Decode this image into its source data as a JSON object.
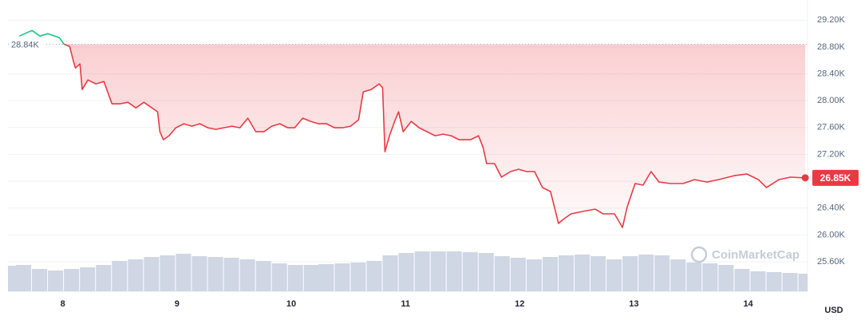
{
  "chart_data": {
    "type": "line",
    "x": [
      7.62,
      7.73,
      7.8,
      7.87,
      7.97,
      8.01,
      8.06,
      8.09,
      8.11,
      8.15,
      8.17,
      8.22,
      8.29,
      8.36,
      8.43,
      8.5,
      8.57,
      8.64,
      8.71,
      8.78,
      8.83,
      8.85,
      8.88,
      8.93,
      8.99,
      9.06,
      9.13,
      9.2,
      9.27,
      9.34,
      9.41,
      9.48,
      9.55,
      9.62,
      9.69,
      9.76,
      9.83,
      9.9,
      9.97,
      10.03,
      10.1,
      10.17,
      10.24,
      10.31,
      10.38,
      10.45,
      10.52,
      10.59,
      10.63,
      10.7,
      10.77,
      10.8,
      10.82,
      10.86,
      10.91,
      10.94,
      10.98,
      11.05,
      11.12,
      11.19,
      11.26,
      11.33,
      11.4,
      11.47,
      11.57,
      11.64,
      11.68,
      11.71,
      11.78,
      11.84,
      11.92,
      11.99,
      12.06,
      12.13,
      12.2,
      12.27,
      12.34,
      12.38,
      12.45,
      12.55,
      12.66,
      12.73,
      12.83,
      12.9,
      12.94,
      13.01,
      13.08,
      13.15,
      13.22,
      13.32,
      13.43,
      13.53,
      13.64,
      13.74,
      13.88,
      13.99,
      14.09,
      14.16,
      14.27,
      14.37,
      14.5
    ],
    "values": [
      28962,
      29046,
      28962,
      28998,
      28939,
      28844,
      28808,
      28606,
      28487,
      28547,
      28166,
      28309,
      28250,
      28285,
      27953,
      27953,
      27976,
      27893,
      27976,
      27893,
      27834,
      27537,
      27418,
      27477,
      27596,
      27656,
      27620,
      27656,
      27596,
      27572,
      27596,
      27620,
      27596,
      27739,
      27537,
      27537,
      27620,
      27656,
      27596,
      27596,
      27739,
      27691,
      27656,
      27656,
      27596,
      27596,
      27620,
      27715,
      28131,
      28166,
      28250,
      28190,
      27240,
      27477,
      27715,
      27834,
      27537,
      27691,
      27596,
      27537,
      27477,
      27501,
      27477,
      27418,
      27418,
      27477,
      27299,
      27062,
      27062,
      26860,
      26943,
      26978,
      26943,
      26943,
      26705,
      26646,
      26171,
      26230,
      26313,
      26349,
      26384,
      26313,
      26313,
      26111,
      26408,
      26765,
      26741,
      26943,
      26788,
      26765,
      26765,
      26824,
      26788,
      26824,
      26883,
      26907,
      26824,
      26705,
      26824,
      26860,
      26850
    ],
    "last_value_label": "26.85K",
    "color": "#ea3943",
    "up_color": "#16c784",
    "baseline": {
      "value": 28840,
      "label": "28.84K"
    },
    "xlim": [
      7.52,
      14.52
    ],
    "xticks": [
      8,
      9,
      10,
      11,
      12,
      13,
      14
    ],
    "ylim": [
      25160,
      29500
    ],
    "yticks": [
      {
        "value": 25600,
        "label": "25.60K"
      },
      {
        "value": 26000,
        "label": "26.00K"
      },
      {
        "value": 26400,
        "label": "26.40K"
      },
      {
        "value": 26800,
        "label": "26.80K"
      },
      {
        "value": 27200,
        "label": "27.20K"
      },
      {
        "value": 27600,
        "label": "27.60K"
      },
      {
        "value": 28000,
        "label": "28.00K"
      },
      {
        "value": 28400,
        "label": "28.40K"
      },
      {
        "value": 28800,
        "label": "28.80K"
      },
      {
        "value": 29200,
        "label": "29.20K"
      }
    ],
    "grid": true,
    "currency": "USD",
    "watermark": "CoinMarketCap",
    "volume": {
      "x": [
        7.52,
        7.66,
        7.8,
        7.94,
        8.08,
        8.22,
        8.36,
        8.5,
        8.64,
        8.78,
        8.92,
        9.06,
        9.2,
        9.34,
        9.48,
        9.62,
        9.76,
        9.9,
        10.04,
        10.18,
        10.31,
        10.45,
        10.59,
        10.73,
        10.87,
        11.01,
        11.15,
        11.29,
        11.43,
        11.57,
        11.71,
        11.85,
        11.99,
        12.13,
        12.27,
        12.41,
        12.55,
        12.69,
        12.83,
        12.97,
        13.11,
        13.25,
        13.39,
        13.53,
        13.67,
        13.81,
        13.95,
        14.09,
        14.23,
        14.37,
        14.51
      ],
      "values": [
        32,
        33,
        28,
        26,
        28,
        30,
        33,
        38,
        40,
        43,
        45,
        47,
        44,
        43,
        42,
        40,
        38,
        35,
        33,
        33,
        34,
        35,
        36,
        38,
        45,
        48,
        50,
        50,
        50,
        49,
        48,
        44,
        42,
        40,
        43,
        45,
        46,
        44,
        40,
        44,
        46,
        45,
        40,
        36,
        35,
        33,
        28,
        25,
        24,
        23,
        22
      ],
      "ylim": [
        0,
        365
      ],
      "color": "#cfd6e4"
    }
  }
}
